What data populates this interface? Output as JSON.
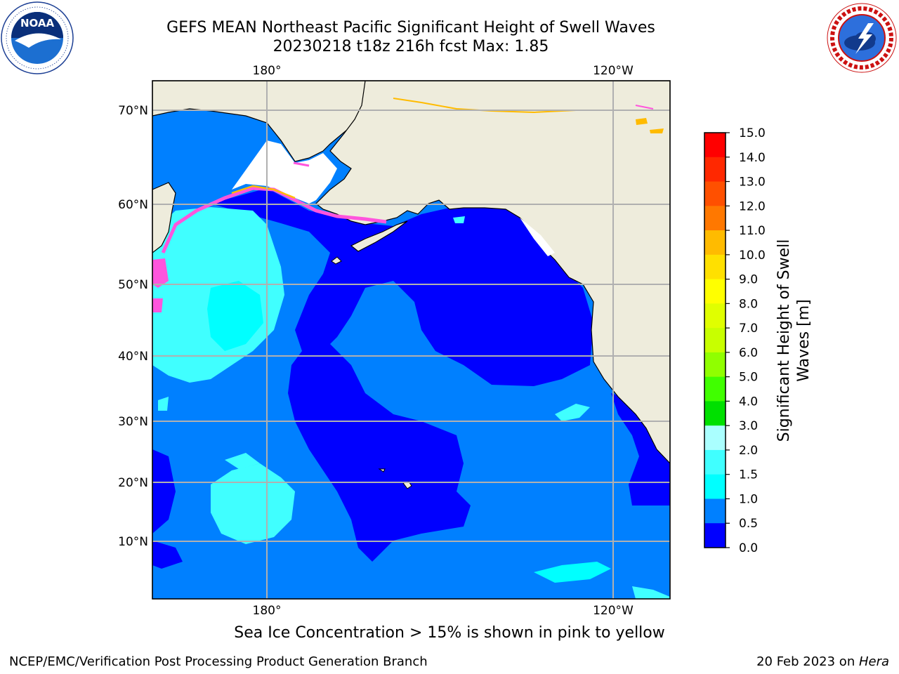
{
  "header": {
    "title_line1": "GEFS MEAN Northeast Pacific Significant Height of Swell Waves",
    "title_line2": "20230218 t18z 216h fcst   Max: 1.85"
  },
  "logos": {
    "left": {
      "icon": "noaa-logo",
      "text": "NOAA",
      "ring_text": "NATIONAL OCEANIC AND ATMOSPHERIC ADMINISTRATION · U.S. DEPARTMENT OF COMMERCE"
    },
    "right": {
      "icon": "nws-logo",
      "ring_text": "NATIONAL WEATHER SERVICE"
    }
  },
  "map": {
    "lon_labels_top": [
      "180°",
      "120°W"
    ],
    "lon_labels_bottom": [
      "180°",
      "120°W"
    ],
    "lat_labels": [
      "70°N",
      "60°N",
      "50°N",
      "40°N",
      "30°N",
      "20°N",
      "10°N"
    ],
    "colors": {
      "land": "#eeecdc",
      "ocean_0_0.5": "#0000ff",
      "ocean_0.5_1.0": "#0080ff",
      "ocean_1.0_1.5": "#00ffff",
      "ocean_1.5_2.0": "#40ffff",
      "sea_ice": "#ff55dd",
      "grid": "#b0b0b0"
    }
  },
  "colorbar": {
    "label_line1": "Significant Height of Swell",
    "label_line2": "Waves [m]",
    "ticks": [
      "15.0",
      "14.0",
      "13.0",
      "12.0",
      "11.0",
      "10.0",
      "9.0",
      "8.0",
      "7.0",
      "6.0",
      "5.0",
      "4.0",
      "3.0",
      "2.0",
      "1.5",
      "1.0",
      "0.5",
      "0.0"
    ],
    "colors": [
      "#ff0000",
      "#ff2800",
      "#ff5000",
      "#ff7800",
      "#ff9800",
      "#ffbb00",
      "#ffe000",
      "#ffff00",
      "#e0ff00",
      "#c8ff00",
      "#90ff00",
      "#40ff00",
      "#00e000",
      "#55ff88",
      "#aaffff",
      "#40ffff",
      "#00ffff",
      "#0080ff",
      "#0000ff"
    ]
  },
  "caption": "Sea Ice Concentration > 15% is shown in pink to yellow",
  "footer": {
    "left": "NCEP/EMC/Verification Post Processing Product Generation Branch",
    "right_date": "20 Feb 2023 on ",
    "right_host": "Hera"
  }
}
